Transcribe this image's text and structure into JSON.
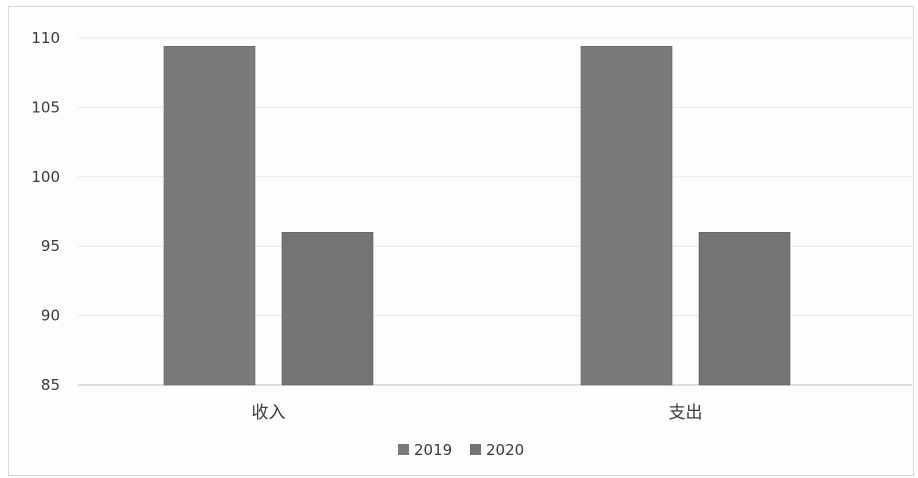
{
  "chart_data": {
    "type": "bar",
    "categories": [
      "收入",
      "支出"
    ],
    "series": [
      {
        "name": "2019",
        "values": [
          109.4,
          109.4
        ],
        "color": "#7a7a7a"
      },
      {
        "name": "2020",
        "values": [
          96.0,
          96.0
        ],
        "color": "#747474"
      }
    ],
    "title": "",
    "xlabel": "",
    "ylabel": "",
    "ylim": [
      85,
      110
    ],
    "yticks": [
      85,
      90,
      95,
      100,
      105,
      110
    ],
    "grid": true,
    "legend": "bottom-center"
  }
}
